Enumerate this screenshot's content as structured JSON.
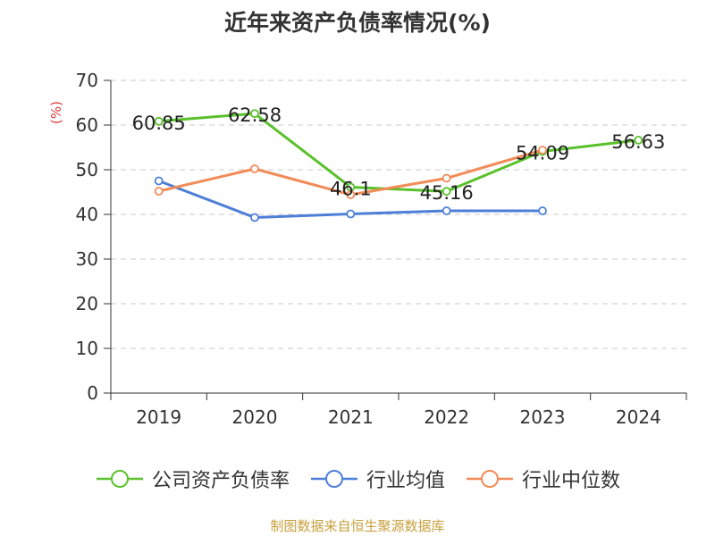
{
  "chart_data": {
    "type": "line",
    "title": "近年来资产负债率情况(%)",
    "ylabel": "(%)",
    "xlabel": "",
    "categories": [
      "2019",
      "2020",
      "2021",
      "2022",
      "2023",
      "2024"
    ],
    "ylim": [
      0,
      70
    ],
    "yticks": [
      0,
      10,
      20,
      30,
      40,
      50,
      60,
      70
    ],
    "grid": true,
    "legend_position": "bottom",
    "series": [
      {
        "name": "公司资产负债率",
        "color": "#5ac12c",
        "values": [
          60.85,
          62.58,
          46.1,
          45.16,
          54.09,
          56.63
        ],
        "labels": [
          "60.85",
          "62.58",
          "46.1",
          "45.16",
          "54.09",
          "56.63"
        ]
      },
      {
        "name": "行业均值",
        "color": "#4e7fd8",
        "values": [
          47.5,
          39.3,
          40.1,
          40.8,
          40.8,
          null
        ]
      },
      {
        "name": "行业中位数",
        "color": "#f28b57",
        "values": [
          45.2,
          50.2,
          44.4,
          48.1,
          54.4,
          null
        ]
      }
    ]
  },
  "source": "制图数据来自恒生聚源数据库"
}
